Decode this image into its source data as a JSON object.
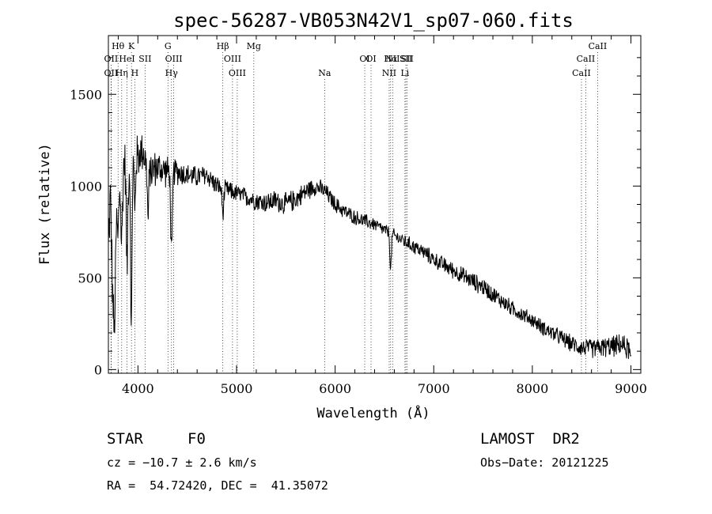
{
  "chart_data": {
    "type": "line",
    "title": "spec-56287-VB053N42V1_sp07-060.fits",
    "xlabel": "Wavelength (Å)",
    "ylabel": "Flux (relative)",
    "xlim": [
      3700,
      9100
    ],
    "ylim": [
      -20,
      1820
    ],
    "xticks": [
      4000,
      5000,
      6000,
      7000,
      8000,
      9000
    ],
    "yticks": [
      0,
      500,
      1000,
      1500
    ],
    "grid": false,
    "anchors": [
      [
        3700,
        650
      ],
      [
        3720,
        950
      ],
      [
        3740,
        600
      ],
      [
        3760,
        550
      ],
      [
        3780,
        900
      ],
      [
        3800,
        1050
      ],
      [
        3830,
        1000
      ],
      [
        3860,
        1150
      ],
      [
        3890,
        1050
      ],
      [
        3920,
        1100
      ],
      [
        3950,
        1150
      ],
      [
        3980,
        1150
      ],
      [
        4050,
        1200
      ],
      [
        4100,
        1080
      ],
      [
        4200,
        1100
      ],
      [
        4300,
        1080
      ],
      [
        4400,
        1080
      ],
      [
        4500,
        1060
      ],
      [
        4600,
        1050
      ],
      [
        4700,
        1060
      ],
      [
        4800,
        1000
      ],
      [
        4900,
        980
      ],
      [
        5000,
        960
      ],
      [
        5100,
        940
      ],
      [
        5200,
        920
      ],
      [
        5300,
        910
      ],
      [
        5400,
        920
      ],
      [
        5500,
        900
      ],
      [
        5600,
        930
      ],
      [
        5700,
        970
      ],
      [
        5800,
        1000
      ],
      [
        5900,
        970
      ],
      [
        6000,
        900
      ],
      [
        6100,
        860
      ],
      [
        6200,
        830
      ],
      [
        6300,
        810
      ],
      [
        6400,
        790
      ],
      [
        6500,
        760
      ],
      [
        6600,
        730
      ],
      [
        6700,
        700
      ],
      [
        6800,
        670
      ],
      [
        6900,
        640
      ],
      [
        7000,
        600
      ],
      [
        7100,
        570
      ],
      [
        7200,
        540
      ],
      [
        7300,
        510
      ],
      [
        7400,
        480
      ],
      [
        7500,
        450
      ],
      [
        7600,
        410
      ],
      [
        7700,
        370
      ],
      [
        7800,
        330
      ],
      [
        7900,
        300
      ],
      [
        8000,
        270
      ],
      [
        8100,
        230
      ],
      [
        8200,
        200
      ],
      [
        8300,
        170
      ],
      [
        8400,
        140
      ],
      [
        8500,
        120
      ],
      [
        8600,
        115
      ],
      [
        8700,
        120
      ],
      [
        8800,
        125
      ],
      [
        8900,
        135
      ],
      [
        8980,
        110
      ],
      [
        9000,
        40
      ]
    ],
    "dips": [
      [
        3760,
        20,
        350
      ],
      [
        3798,
        10,
        320
      ],
      [
        3835,
        12,
        330
      ],
      [
        3889,
        10,
        500
      ],
      [
        3933,
        9,
        950
      ],
      [
        3968,
        9,
        300
      ],
      [
        4102,
        10,
        260
      ],
      [
        4340,
        12,
        460
      ],
      [
        4861,
        12,
        140
      ],
      [
        6563,
        10,
        200
      ]
    ],
    "noise": [
      [
        3700,
        180
      ],
      [
        4000,
        140
      ],
      [
        4500,
        70
      ],
      [
        5000,
        55
      ],
      [
        5500,
        70
      ],
      [
        6000,
        50
      ],
      [
        6500,
        40
      ],
      [
        7000,
        50
      ],
      [
        7500,
        55
      ],
      [
        8000,
        45
      ],
      [
        8500,
        55
      ],
      [
        9000,
        70
      ]
    ],
    "lines": [
      {
        "label": "Hθ",
        "x": 3798,
        "row": 0
      },
      {
        "label": "K",
        "x": 3934,
        "row": 0
      },
      {
        "label": "G",
        "x": 4304,
        "row": 0
      },
      {
        "label": "Hβ",
        "x": 4861,
        "row": 0
      },
      {
        "label": "Mg",
        "x": 5175,
        "row": 0
      },
      {
        "label": "OI",
        "x": 6364,
        "row": 1
      },
      {
        "label": "NII",
        "x": 6583,
        "row": 1
      },
      {
        "label": "SII",
        "x": 6731,
        "row": 1
      },
      {
        "label": "CaII",
        "x": 8662,
        "row": 0
      },
      {
        "label": "OII",
        "x": 3727,
        "row": 1
      },
      {
        "label": "HeI",
        "x": 3889,
        "row": 1
      },
      {
        "label": "SII",
        "x": 4072,
        "row": 1
      },
      {
        "label": "OIII",
        "x": 4363,
        "row": 1
      },
      {
        "label": "OIII",
        "x": 4959,
        "row": 1
      },
      {
        "label": "OI",
        "x": 6300,
        "row": 1
      },
      {
        "label": "Hα",
        "x": 6563,
        "row": 1
      },
      {
        "label": "SII",
        "x": 6717,
        "row": 1
      },
      {
        "label": "CaII",
        "x": 8542,
        "row": 1
      },
      {
        "label": "OII",
        "x": 3727,
        "row": 2
      },
      {
        "label": "Hη",
        "x": 3835,
        "row": 2
      },
      {
        "label": "H",
        "x": 3968,
        "row": 2
      },
      {
        "label": "Hγ",
        "x": 4340,
        "row": 2
      },
      {
        "label": "OIII",
        "x": 5007,
        "row": 2
      },
      {
        "label": "Na",
        "x": 5893,
        "row": 2
      },
      {
        "label": "NII",
        "x": 6548,
        "row": 2
      },
      {
        "label": "Li",
        "x": 6708,
        "row": 2
      },
      {
        "label": "CaII",
        "x": 8498,
        "row": 2
      }
    ]
  },
  "footer": {
    "object_class": "STAR",
    "subclass": "F0",
    "survey": "LAMOST  DR2",
    "cz": "cz = −10.7 ± 2.6 km/s",
    "obs_date": "Obs−Date: 20121225",
    "radec": "RA =  54.72420, DEC =  41.35072"
  }
}
